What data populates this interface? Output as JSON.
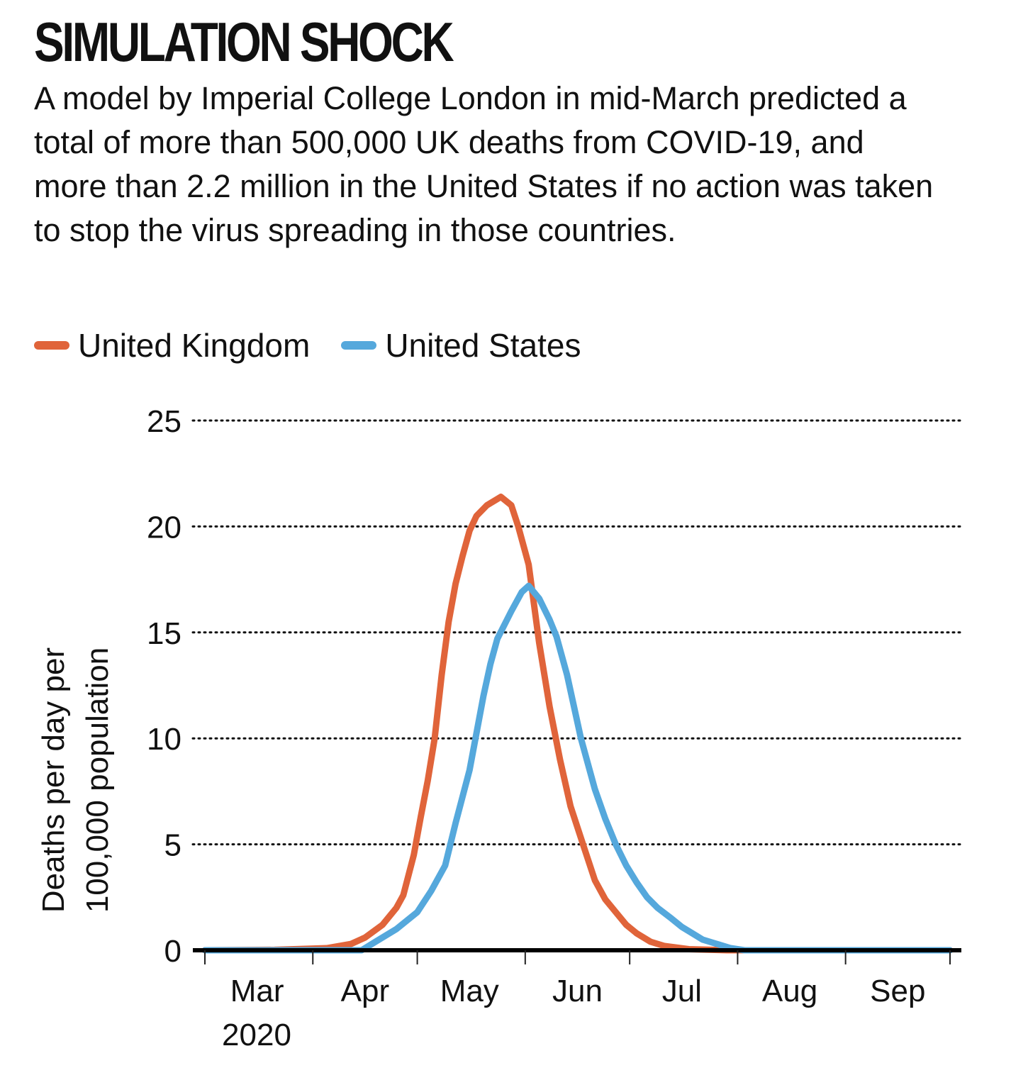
{
  "title": "SIMULATION SHOCK",
  "subtitle": "A model by Imperial College London in mid-March predicted a total of more than 500,000 UK deaths from COVID-19, and more than 2.2 million in the United States if no action was taken to stop the virus spreading in those countries.",
  "chart_data": {
    "type": "line",
    "title": "SIMULATION SHOCK",
    "xlabel": "",
    "xlabel_year": "2020",
    "ylabel_lines": [
      "Deaths per day per",
      "100,000 population"
    ],
    "x_unit": "days since 1 Mar 2020",
    "xlim": [
      0,
      214
    ],
    "ylim": [
      0,
      25
    ],
    "yticks": [
      0,
      5,
      10,
      15,
      20,
      25
    ],
    "ytick_labels": [
      "0",
      "5",
      "10",
      "15",
      "20",
      "25"
    ],
    "xticks": [
      0,
      31,
      61,
      92,
      122,
      153,
      184,
      214
    ],
    "month_labels": [
      {
        "label": "Mar",
        "x": 15
      },
      {
        "label": "Apr",
        "x": 46
      },
      {
        "label": "May",
        "x": 76
      },
      {
        "label": "Jun",
        "x": 107
      },
      {
        "label": "Jul",
        "x": 137
      },
      {
        "label": "Aug",
        "x": 168
      },
      {
        "label": "Sep",
        "x": 199
      }
    ],
    "grid": "horizontal dotted",
    "legend_position": "top-left",
    "series": [
      {
        "name": "United Kingdom",
        "color": "#E0643A",
        "points": [
          [
            0,
            0
          ],
          [
            20,
            0.02
          ],
          [
            35,
            0.1
          ],
          [
            42,
            0.3
          ],
          [
            46,
            0.6
          ],
          [
            51,
            1.2
          ],
          [
            55,
            2
          ],
          [
            57,
            2.6
          ],
          [
            60,
            4.5
          ],
          [
            62,
            6.3
          ],
          [
            64,
            8
          ],
          [
            66,
            10
          ],
          [
            68,
            13
          ],
          [
            70,
            15.5
          ],
          [
            72,
            17.3
          ],
          [
            74,
            18.6
          ],
          [
            76,
            19.8
          ],
          [
            78,
            20.5
          ],
          [
            81,
            21
          ],
          [
            85,
            21.4
          ],
          [
            88,
            21
          ],
          [
            90,
            20
          ],
          [
            93,
            18.2
          ],
          [
            96,
            14.5
          ],
          [
            99,
            11.5
          ],
          [
            102,
            9
          ],
          [
            105,
            6.8
          ],
          [
            109,
            4.8
          ],
          [
            112,
            3.3
          ],
          [
            115,
            2.4
          ],
          [
            118,
            1.8
          ],
          [
            121,
            1.2
          ],
          [
            124,
            0.8
          ],
          [
            128,
            0.4
          ],
          [
            132,
            0.2
          ],
          [
            139,
            0.05
          ],
          [
            150,
            0
          ],
          [
            214,
            0
          ]
        ]
      },
      {
        "name": "United States",
        "color": "#55A8DC",
        "points": [
          [
            0,
            0
          ],
          [
            45,
            0
          ],
          [
            49,
            0.4
          ],
          [
            55,
            1
          ],
          [
            61,
            1.8
          ],
          [
            65,
            2.8
          ],
          [
            69,
            4
          ],
          [
            72,
            6
          ],
          [
            76,
            8.5
          ],
          [
            80,
            12
          ],
          [
            82,
            13.5
          ],
          [
            84,
            14.7
          ],
          [
            88,
            16
          ],
          [
            91,
            16.9
          ],
          [
            93,
            17.2
          ],
          [
            96,
            16.6
          ],
          [
            99,
            15.6
          ],
          [
            101,
            14.8
          ],
          [
            104,
            13
          ],
          [
            108,
            10
          ],
          [
            112,
            7.6
          ],
          [
            115,
            6.2
          ],
          [
            118,
            5
          ],
          [
            121,
            4
          ],
          [
            124,
            3.2
          ],
          [
            127,
            2.5
          ],
          [
            130,
            2
          ],
          [
            134,
            1.5
          ],
          [
            137,
            1.1
          ],
          [
            140,
            0.8
          ],
          [
            143,
            0.5
          ],
          [
            147,
            0.3
          ],
          [
            151,
            0.1
          ],
          [
            155,
            0
          ],
          [
            214,
            0
          ]
        ]
      }
    ]
  }
}
